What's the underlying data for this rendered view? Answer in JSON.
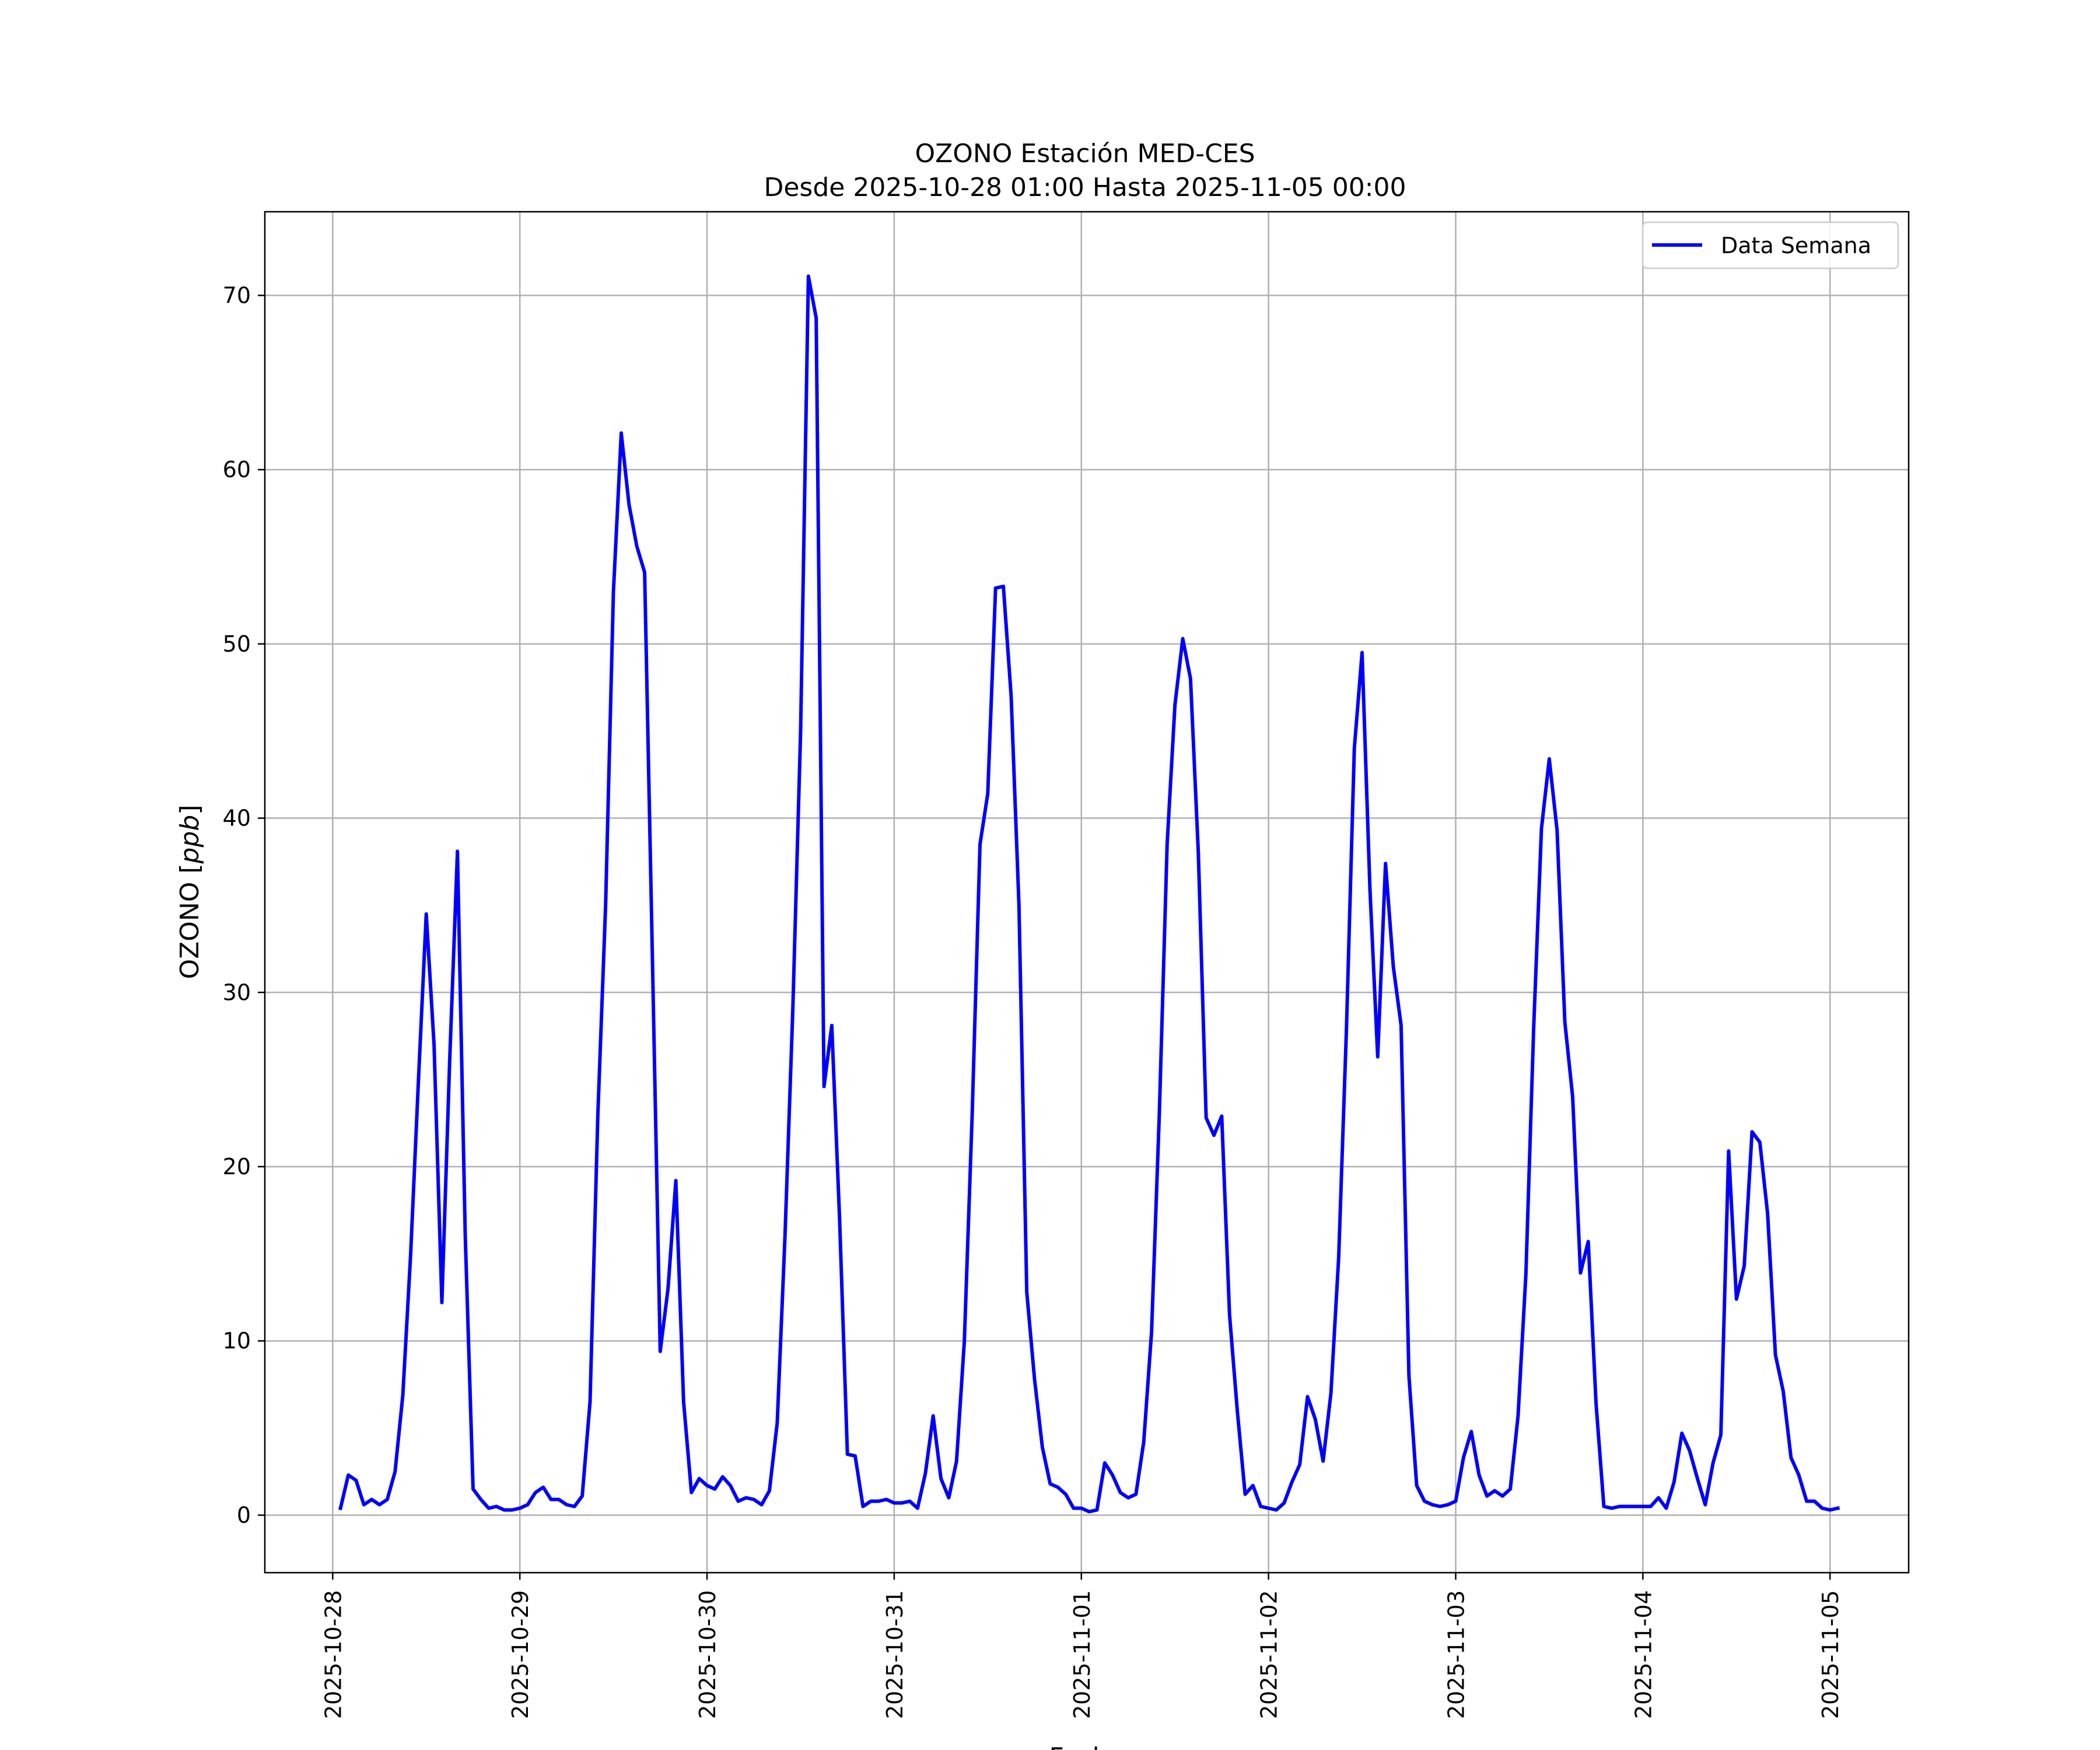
{
  "chart_data": {
    "type": "line",
    "title": "OZONO Estación MED-CES",
    "subtitle": "Desde 2025-10-28 01:00 Hasta 2025-11-05 00:00",
    "xlabel": "Fecha",
    "ylabel_prefix": "OZONO [",
    "ylabel_unit": "ppb",
    "ylabel_suffix": "]",
    "x_start": "2025-10-28 01:00",
    "x_step_hours": 1,
    "x_ticks": [
      "2025-10-28",
      "2025-10-29",
      "2025-10-30",
      "2025-10-31",
      "2025-11-01",
      "2025-11-02",
      "2025-11-03",
      "2025-11-04",
      "2025-11-05"
    ],
    "xlim": [
      "2025-10-27 15:18",
      "2025-11-05 10:05"
    ],
    "y_ticks": [
      0,
      10,
      20,
      30,
      40,
      50,
      60,
      70
    ],
    "ylim": [
      -3.3,
      74.8
    ],
    "grid": true,
    "legend_position": "top-right",
    "series": [
      {
        "name": "Data Semana",
        "color": "#0000ff",
        "values": [
          0.4,
          2.3,
          2.0,
          0.6,
          0.9,
          0.6,
          0.9,
          2.5,
          6.9,
          15.0,
          25.0,
          34.5,
          27.0,
          12.2,
          26.0,
          38.1,
          16.0,
          1.5,
          0.9,
          0.4,
          0.5,
          0.3,
          0.3,
          0.4,
          0.6,
          1.3,
          1.6,
          0.9,
          0.9,
          0.6,
          0.5,
          1.1,
          6.5,
          23.0,
          35.0,
          53.0,
          62.1,
          58.0,
          55.6,
          54.1,
          32.0,
          9.4,
          13.0,
          19.2,
          6.5,
          1.3,
          2.1,
          1.7,
          1.5,
          2.2,
          1.7,
          0.8,
          1.0,
          0.9,
          0.6,
          1.4,
          5.3,
          16.0,
          29.0,
          45.0,
          71.1,
          68.7,
          24.6,
          28.1,
          17.0,
          3.5,
          3.4,
          0.5,
          0.8,
          0.8,
          0.9,
          0.7,
          0.7,
          0.8,
          0.4,
          2.4,
          5.7,
          2.1,
          1.0,
          3.1,
          10.0,
          23.0,
          38.5,
          41.4,
          53.2,
          53.3,
          47.0,
          35.0,
          12.8,
          7.8,
          3.9,
          1.8,
          1.6,
          1.2,
          0.4,
          0.4,
          0.2,
          0.3,
          3.0,
          2.3,
          1.3,
          1.0,
          1.2,
          4.2,
          10.5,
          23.0,
          38.5,
          46.5,
          50.3,
          48.0,
          38.0,
          22.8,
          21.8,
          22.9,
          11.5,
          6.0,
          1.2,
          1.7,
          0.5,
          0.4,
          0.3,
          0.7,
          1.9,
          2.9,
          6.8,
          5.5,
          3.1,
          7.0,
          14.8,
          28.0,
          44.0,
          49.5,
          36.0,
          26.3,
          37.4,
          31.5,
          28.1,
          8.0,
          1.7,
          0.8,
          0.6,
          0.5,
          0.6,
          0.8,
          3.3,
          4.8,
          2.3,
          1.1,
          1.4,
          1.1,
          1.5,
          5.7,
          13.8,
          28.0,
          39.4,
          43.4,
          39.3,
          28.3,
          24.0,
          13.9,
          15.7,
          6.4,
          0.5,
          0.4,
          0.5,
          0.5,
          0.5,
          0.5,
          0.5,
          1.0,
          0.4,
          1.9,
          4.7,
          3.7,
          2.1,
          0.6,
          3.0,
          4.6,
          20.9,
          12.4,
          14.3,
          22.0,
          21.4,
          17.3,
          9.2,
          7.1,
          3.3,
          2.3,
          0.8,
          0.8,
          0.4,
          0.3,
          0.4
        ]
      }
    ]
  }
}
